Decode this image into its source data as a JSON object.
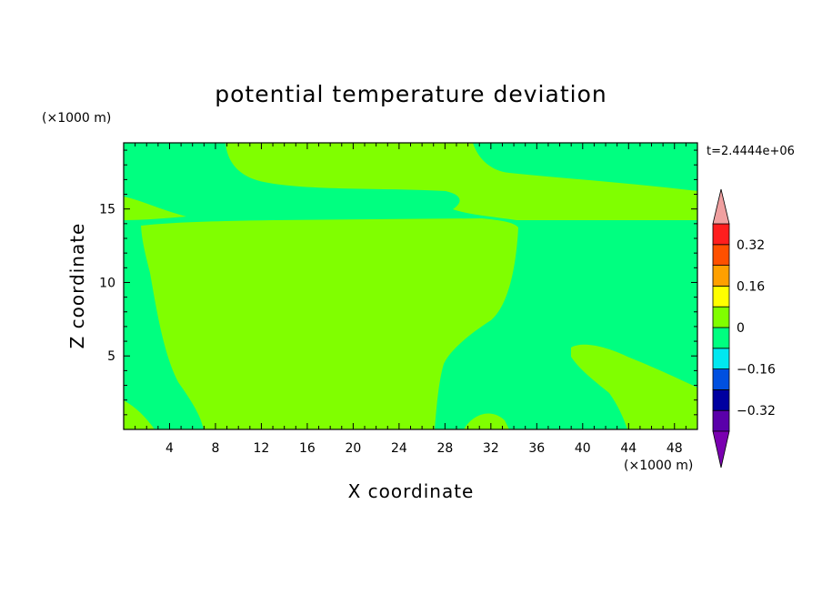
{
  "chart_data": {
    "type": "contour",
    "title": "potential temperature deviation",
    "xlabel": "X coordinate",
    "ylabel": "Z coordinate",
    "x_unit": "(×1000 m)",
    "y_unit": "(×1000 m)",
    "time_label": "t=2.4444e+06",
    "xlim": [
      0,
      50
    ],
    "ylim": [
      0,
      19.5
    ],
    "x_ticks": [
      4,
      8,
      12,
      16,
      20,
      24,
      28,
      32,
      36,
      40,
      44,
      48
    ],
    "y_ticks": [
      5,
      10,
      15
    ],
    "colorbar": {
      "levels": [
        -0.4,
        -0.32,
        -0.24,
        -0.16,
        -0.08,
        0,
        0.08,
        0.16,
        0.24,
        0.32,
        0.4
      ],
      "tick_labels": [
        "0.32",
        "0.16",
        "0",
        "−0.16",
        "−0.32"
      ],
      "tick_values": [
        0.32,
        0.16,
        0,
        -0.16,
        -0.32
      ],
      "colors": [
        "#5a00aa",
        "#0000a0",
        "#0050e0",
        "#00e8f0",
        "#00ff80",
        "#80ff00",
        "#ffff00",
        "#ffa000",
        "#ff5000",
        "#ff1e1e"
      ],
      "under_color": "#7a00b0",
      "over_color": "#f0a0a0"
    },
    "background_band": "#00ff80",
    "foreground_band": "#80ff00"
  }
}
